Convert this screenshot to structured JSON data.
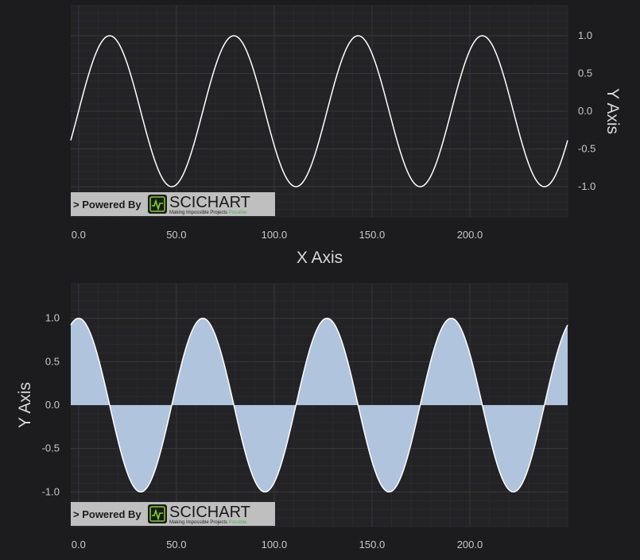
{
  "chart_data": [
    {
      "type": "line",
      "xlabel": "X Axis",
      "ylabel": "Y Axis",
      "xlim": [
        -4,
        250
      ],
      "ylim": [
        -1.4,
        1.4
      ],
      "x_ticks": [
        "0.0",
        "50.0",
        "100.0",
        "150.0",
        "200.0"
      ],
      "y_ticks": [
        "1.0",
        "0.5",
        "0.0",
        "-0.5",
        "-1.0"
      ],
      "series": [
        {
          "function": "sin",
          "amplitude": 1.0,
          "period": 63.5,
          "x_range": [
            -4,
            250
          ],
          "color": "#ffffff"
        }
      ],
      "grid": true
    },
    {
      "type": "area",
      "xlabel": "",
      "ylabel": "Y Axis",
      "xlim": [
        -4,
        250
      ],
      "ylim": [
        -1.4,
        1.4
      ],
      "x_ticks": [
        "0.0",
        "50.0",
        "100.0",
        "150.0",
        "200.0"
      ],
      "y_ticks": [
        "1.0",
        "0.5",
        "0.0",
        "-0.5",
        "-1.0"
      ],
      "series": [
        {
          "function": "cos",
          "amplitude": 1.0,
          "period": 63.5,
          "x_range": [
            -4,
            250
          ],
          "fill": "#b0c4de",
          "stroke": "#ffffff"
        }
      ],
      "grid": true
    }
  ],
  "watermark": {
    "powered_by": "> Powered By",
    "brand": "SCICHART",
    "tagline": "Making Impossible Projects",
    "tagline_accent": "Possible"
  },
  "colors": {
    "background": "#1c1c1e",
    "plot_background": "#232326",
    "line": "#ffffff",
    "area_fill": "#b0c4de",
    "grid_major": "#38383c",
    "grid_minor": "#2a2a2d",
    "watermark_bg": "#bfbfbf",
    "logo_green": "#7ed321"
  }
}
